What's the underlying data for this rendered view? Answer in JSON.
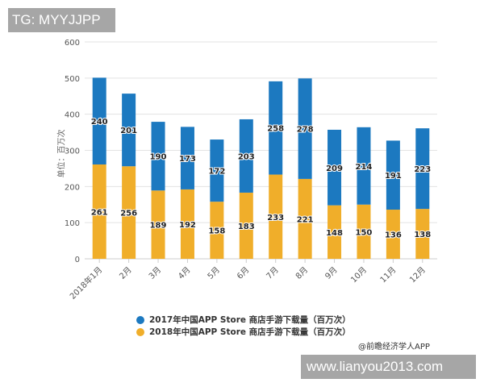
{
  "chart_data": {
    "type": "bar",
    "stacked": true,
    "categories": [
      "2018年1月",
      "2月",
      "3月",
      "4月",
      "5月",
      "6月",
      "7月",
      "8月",
      "9月",
      "10月",
      "11月",
      "12月"
    ],
    "series": [
      {
        "name": "2018年中国APP Store 商店手游下载量（百万次）",
        "color": "#f0ae2a",
        "values": [
          261,
          256,
          189,
          192,
          158,
          183,
          233,
          221,
          148,
          150,
          136,
          138
        ]
      },
      {
        "name": "2017年中国APP Store 商店手游下载量（百万次）",
        "color": "#1c79c0",
        "values": [
          240,
          201,
          190,
          173,
          172,
          203,
          258,
          278,
          209,
          214,
          191,
          223
        ]
      }
    ],
    "ylabel": "单位：百万次",
    "ylim": [
      0,
      600
    ],
    "yticks": [
      "0",
      "100",
      "200",
      "300",
      "400",
      "500",
      "600"
    ],
    "grid": true,
    "legend_position": "bottom"
  },
  "legend": [
    {
      "label": "2017年中国APP Store 商店手游下载量（百万次）",
      "color": "#1c79c0"
    },
    {
      "label": "2018年中国APP Store 商店手游下载量（百万次）",
      "color": "#f0ae2a"
    }
  ],
  "source": "@前瞻经济学人APP",
  "watermarks": {
    "top_left": "TG: MYYJJPP",
    "bottom_right": "www.lianyou2013.com"
  }
}
